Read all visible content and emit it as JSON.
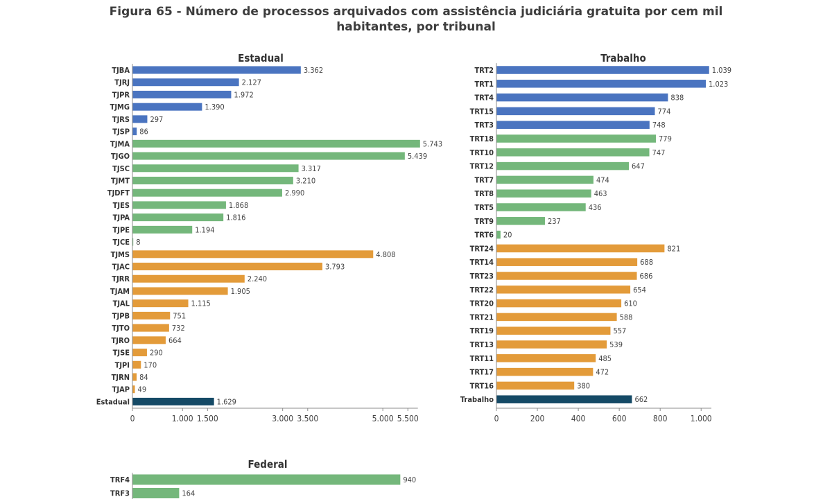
{
  "figure": {
    "title_line1": "Figura 65 - Número de processos arquivados com assistência judiciária gratuita por cem mil",
    "title_line2": "habitantes, por tribunal"
  },
  "colors": {
    "blue": "#4a74c0",
    "green": "#74b77b",
    "orange": "#e39b3a",
    "navy": "#154a66"
  },
  "chart_data": [
    {
      "type": "bar",
      "orientation": "horizontal",
      "title": "Estadual",
      "xlim": [
        0,
        5700
      ],
      "ticks": [
        0,
        1000,
        1500,
        3000,
        3500,
        5000,
        5500
      ],
      "tick_labels": [
        "0",
        "1.000",
        "1.500",
        "3.000",
        "3.500",
        "5.000",
        "5.500"
      ],
      "categories": [
        "TJBA",
        "TJRJ",
        "TJPR",
        "TJMG",
        "TJRS",
        "TJSP",
        "TJMA",
        "TJGO",
        "TJSC",
        "TJMT",
        "TJDFT",
        "TJES",
        "TJPA",
        "TJPE",
        "TJCE",
        "TJMS",
        "TJAC",
        "TJRR",
        "TJAM",
        "TJAL",
        "TJPB",
        "TJTO",
        "TJRO",
        "TJSE",
        "TJPI",
        "TJRN",
        "TJAP",
        "Estadual"
      ],
      "values": [
        3362,
        2127,
        1972,
        1390,
        297,
        86,
        5743,
        5439,
        3317,
        3210,
        2990,
        1868,
        1816,
        1194,
        8,
        4808,
        3793,
        2240,
        1905,
        1115,
        751,
        732,
        664,
        290,
        170,
        84,
        49,
        1629
      ],
      "value_labels": [
        "3.362",
        "2.127",
        "1.972",
        "1.390",
        "297",
        "86",
        "5.743",
        "5.439",
        "3.317",
        "3.210",
        "2.990",
        "1.868",
        "1.816",
        "1.194",
        "8",
        "4.808",
        "3.793",
        "2.240",
        "1.905",
        "1.115",
        "751",
        "732",
        "664",
        "290",
        "170",
        "84",
        "49",
        "1.629"
      ],
      "groups": [
        "blue",
        "blue",
        "blue",
        "blue",
        "blue",
        "blue",
        "green",
        "green",
        "green",
        "green",
        "green",
        "green",
        "green",
        "green",
        "green",
        "orange",
        "orange",
        "orange",
        "orange",
        "orange",
        "orange",
        "orange",
        "orange",
        "orange",
        "orange",
        "orange",
        "orange",
        "navy"
      ]
    },
    {
      "type": "bar",
      "orientation": "horizontal",
      "title": "Trabalho",
      "xlim": [
        0,
        1050
      ],
      "ticks": [
        0,
        200,
        400,
        600,
        800,
        1000
      ],
      "tick_labels": [
        "0",
        "200",
        "400",
        "600",
        "800",
        "1.000"
      ],
      "categories": [
        "TRT2",
        "TRT1",
        "TRT4",
        "TRT15",
        "TRT3",
        "TRT18",
        "TRT10",
        "TRT12",
        "TRT7",
        "TRT8",
        "TRT5",
        "TRT9",
        "TRT6",
        "TRT24",
        "TRT14",
        "TRT23",
        "TRT22",
        "TRT20",
        "TRT21",
        "TRT19",
        "TRT13",
        "TRT11",
        "TRT17",
        "TRT16",
        "Trabalho"
      ],
      "values": [
        1039,
        1023,
        838,
        774,
        748,
        779,
        747,
        647,
        474,
        463,
        436,
        237,
        20,
        821,
        688,
        686,
        654,
        610,
        588,
        557,
        539,
        485,
        472,
        380,
        662
      ],
      "value_labels": [
        "1.039",
        "1.023",
        "838",
        "774",
        "748",
        "779",
        "747",
        "647",
        "474",
        "463",
        "436",
        "237",
        "20",
        "821",
        "688",
        "686",
        "654",
        "610",
        "588",
        "557",
        "539",
        "485",
        "472",
        "380",
        "662"
      ],
      "groups": [
        "blue",
        "blue",
        "blue",
        "blue",
        "blue",
        "green",
        "green",
        "green",
        "green",
        "green",
        "green",
        "green",
        "green",
        "orange",
        "orange",
        "orange",
        "orange",
        "orange",
        "orange",
        "orange",
        "orange",
        "orange",
        "orange",
        "orange",
        "navy"
      ]
    },
    {
      "type": "bar",
      "orientation": "horizontal",
      "title": "Federal",
      "xlim": [
        0,
        1000
      ],
      "categories": [
        "TRF4",
        "TRF3"
      ],
      "values": [
        940,
        164
      ],
      "value_labels": [
        "940",
        "164"
      ],
      "groups": [
        "green",
        "green"
      ]
    }
  ]
}
